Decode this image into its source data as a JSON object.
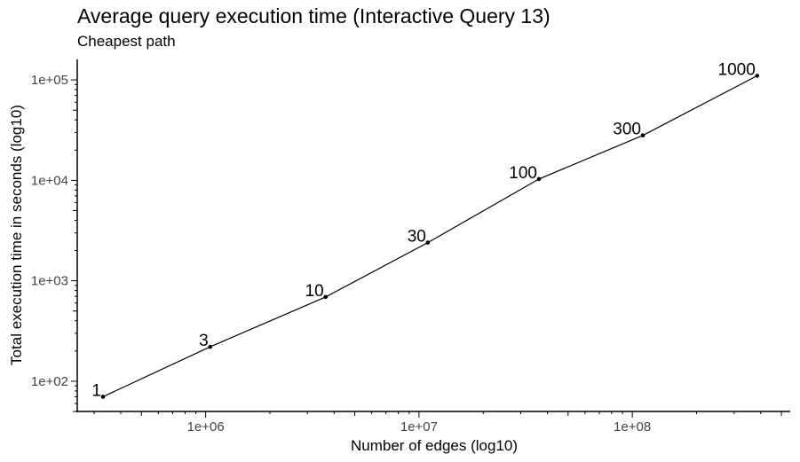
{
  "chart_data": {
    "type": "line",
    "title": "Average query execution time (Interactive Query 13)",
    "subtitle": "Cheapest path",
    "xlabel": "Number of edges (log10)",
    "ylabel": "Total execution time in seconds (log10)",
    "xscale": "log10",
    "yscale": "log10",
    "xlim": [
      250000,
      550000000
    ],
    "ylim": [
      50,
      160000
    ],
    "x_ticks": [
      {
        "value": 1000000,
        "label": "1e+06"
      },
      {
        "value": 10000000,
        "label": "1e+07"
      },
      {
        "value": 100000000,
        "label": "1e+08"
      }
    ],
    "y_ticks": [
      {
        "value": 100,
        "label": "1e+02"
      },
      {
        "value": 1000,
        "label": "1e+03"
      },
      {
        "value": 10000,
        "label": "1e+04"
      },
      {
        "value": 100000,
        "label": "1e+05"
      }
    ],
    "series": [
      {
        "name": "Interactive Query 13",
        "points": [
          {
            "label": "1",
            "x": 330000,
            "y": 70
          },
          {
            "label": "3",
            "x": 1050000,
            "y": 220
          },
          {
            "label": "10",
            "x": 3650000,
            "y": 690
          },
          {
            "label": "30",
            "x": 11000000,
            "y": 2400
          },
          {
            "label": "100",
            "x": 36500000,
            "y": 10300
          },
          {
            "label": "300",
            "x": 112000000,
            "y": 28000
          },
          {
            "label": "1000",
            "x": 385000000,
            "y": 110000
          }
        ]
      }
    ],
    "grid": false,
    "legend": "none"
  }
}
